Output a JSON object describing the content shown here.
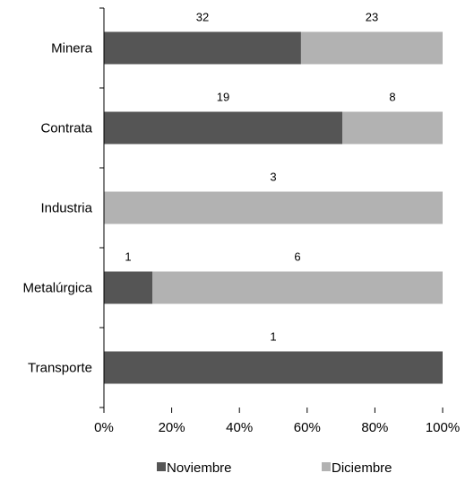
{
  "chart_data": {
    "type": "bar",
    "orientation": "horizontal",
    "stacked": "percent",
    "categories": [
      "Minera",
      "Contrata",
      "Industria",
      "Metalúrgica",
      "Transporte"
    ],
    "series": [
      {
        "name": "Noviembre",
        "values": [
          32,
          19,
          0,
          1,
          1
        ],
        "color": "#555555"
      },
      {
        "name": "Diciembre",
        "values": [
          23,
          8,
          3,
          6,
          0
        ],
        "color": "#b2b2b2"
      }
    ],
    "data_labels": [
      [
        "32",
        "23"
      ],
      [
        "19",
        "8"
      ],
      [
        "",
        "3"
      ],
      [
        "1",
        "6"
      ],
      [
        "1",
        ""
      ]
    ],
    "x_ticks": [
      "0%",
      "20%",
      "40%",
      "60%",
      "80%",
      "100%"
    ],
    "xlim": [
      0,
      100
    ],
    "grid": false,
    "legend_position": "bottom",
    "title": "",
    "xlabel": "",
    "ylabel": ""
  }
}
